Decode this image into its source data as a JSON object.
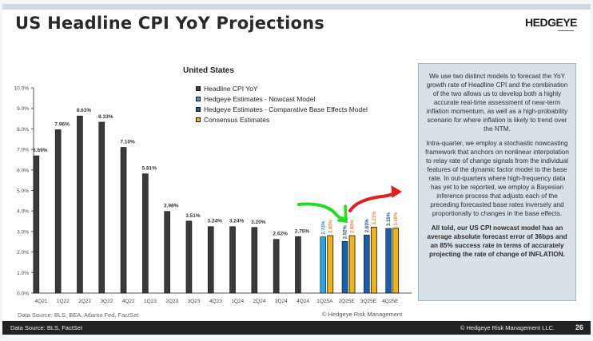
{
  "slide": {
    "title": "US Headline CPI YoY Projections",
    "logo": "HEDGEYE",
    "chart_source": "Data Source: BLS, BEA, Atlanta Fed, FactSet",
    "chart_copyright": "© Hedgeye Risk Management",
    "footer_source": "Data Source: BLS, FactSet",
    "footer_copyright": "© Hedgeye Risk Management LLC.",
    "page_number": "26"
  },
  "legend": {
    "title": "United States",
    "items": [
      {
        "label": "Headline CPI YoY",
        "color": "#3a3a3a"
      },
      {
        "label": "Hedgeye Estimates - Nowcast Model",
        "color": "#29a3e0"
      },
      {
        "label": "Hedgeye Estimates - Comparative Base Effects Model",
        "color": "#1560a8"
      },
      {
        "label": "Consensus Estimates",
        "color": "#f2b316"
      }
    ]
  },
  "panel": {
    "paragraphs": [
      "We use two distinct models to forecast the YoY growth rate of Headline CPI and the combination of the two allows us to develop both a highly accurate real-time assessment of near-term inflation momentum, as well as a high-probability scenario for where inflation is likely to trend over the NTM.",
      "Intra-quarter, we employ a stochastic nowcasting framework that anchors on nonlinear interpolation to relay rate of change signals from the individual features of the dynamic factor model to the base rate. In out-quarters where high-frequency data has yet to be reported, we employ a Bayesian inference process that adjusts each of the preceding forecasted base rates inversely and proportionally to changes in the base effects.",
      "All told, our US CPI nowcast model has an average absolute forecast error of 36bps and an 85% success rate in terms of accurately projecting the rate of change of INFLATION."
    ]
  },
  "chart_data": {
    "type": "bar",
    "title": "United States",
    "xlabel": "",
    "ylabel": "",
    "ylim": [
      0,
      10
    ],
    "yticks": [
      "0.0%",
      "1.0%",
      "2.0%",
      "3.0%",
      "4.0%",
      "5.0%",
      "6.0%",
      "7.0%",
      "8.0%",
      "9.0%",
      "10.0%"
    ],
    "grid": false,
    "legend_position": "top-center",
    "categories": [
      "4Q21",
      "1Q22",
      "2Q22",
      "3Q22",
      "4Q22",
      "1Q23",
      "2Q23",
      "3Q23",
      "4Q23",
      "1Q24",
      "2Q24",
      "3Q24",
      "4Q24",
      "1Q25A",
      "2Q25E",
      "3Q25E",
      "4Q25E"
    ],
    "series": [
      {
        "name": "Headline CPI YoY",
        "color": "#3a3a3a",
        "values": [
          6.69,
          7.96,
          8.63,
          8.33,
          7.1,
          5.81,
          3.98,
          3.51,
          3.24,
          3.24,
          3.2,
          2.62,
          2.75,
          null,
          null,
          null,
          null
        ]
      },
      {
        "name": "Hedgeye Estimates - Nowcast Model",
        "color": "#29a3e0",
        "values": [
          null,
          null,
          null,
          null,
          null,
          null,
          null,
          null,
          null,
          null,
          null,
          null,
          null,
          2.74,
          null,
          null,
          null
        ]
      },
      {
        "name": "Hedgeye Estimates - Comparative Base Effects Model",
        "color": "#1560a8",
        "values": [
          null,
          null,
          null,
          null,
          null,
          null,
          null,
          null,
          null,
          null,
          null,
          null,
          null,
          null,
          2.52,
          2.83,
          3.15
        ]
      },
      {
        "name": "Consensus Estimates",
        "color": "#f2b316",
        "values": [
          null,
          null,
          null,
          null,
          null,
          null,
          null,
          null,
          null,
          null,
          null,
          null,
          null,
          2.8,
          2.8,
          3.21,
          3.16
        ]
      }
    ],
    "annotations": [
      {
        "type": "hand-drawn-arrow",
        "color": "#22dd22",
        "points_to": "2Q25E",
        "direction": "down"
      },
      {
        "type": "hand-drawn-arrow",
        "color": "#e02020",
        "from": "2Q25E",
        "direction": "up-right"
      }
    ]
  }
}
